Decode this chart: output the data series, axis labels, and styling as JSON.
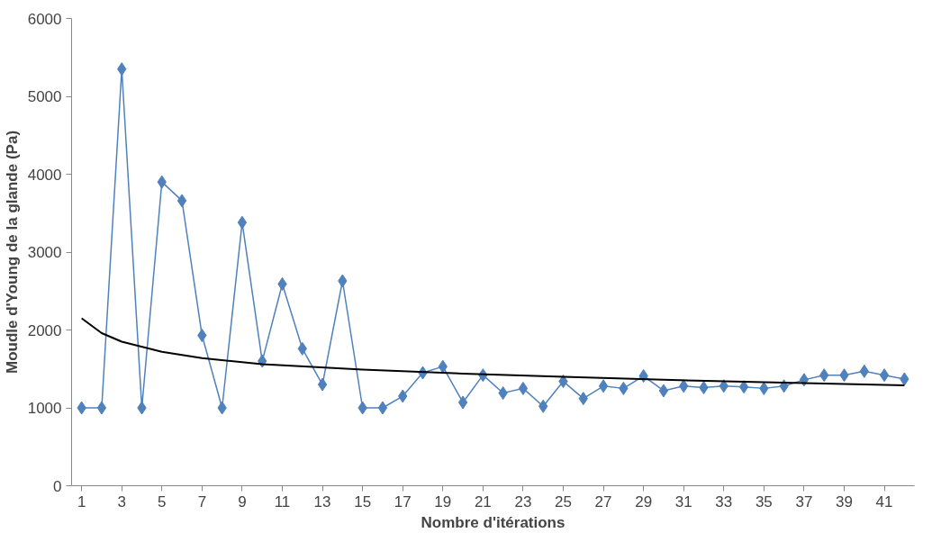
{
  "chart_data": {
    "type": "line",
    "xlabel": "Nombre d'itérations",
    "ylabel": "Moudle d'Young de la glande (Pa)",
    "x": [
      1,
      2,
      3,
      4,
      5,
      6,
      7,
      8,
      9,
      10,
      11,
      12,
      13,
      14,
      15,
      16,
      17,
      18,
      19,
      20,
      21,
      22,
      23,
      24,
      25,
      26,
      27,
      28,
      29,
      30,
      31,
      32,
      33,
      34,
      35,
      36,
      37,
      38,
      39,
      40,
      41,
      42
    ],
    "series": [
      {
        "color": "#4f81bd",
        "marker": "diamond",
        "values": [
          1000,
          1000,
          5350,
          1000,
          3900,
          3660,
          1930,
          1000,
          3380,
          1600,
          2590,
          1760,
          1300,
          2630,
          1000,
          1000,
          1150,
          1450,
          1530,
          1070,
          1420,
          1190,
          1250,
          1020,
          1340,
          1120,
          1280,
          1250,
          1410,
          1220,
          1280,
          1260,
          1280,
          1270,
          1250,
          1280,
          1360,
          1420,
          1420,
          1470,
          1420,
          1370
        ]
      },
      {
        "color": "#000000",
        "marker": "none",
        "x": [
          1,
          2,
          3,
          5,
          7,
          10,
          15,
          20,
          25,
          30,
          35,
          42
        ],
        "values": [
          2150,
          1960,
          1850,
          1720,
          1640,
          1560,
          1490,
          1440,
          1400,
          1360,
          1330,
          1290
        ]
      }
    ],
    "xlim": [
      0.5,
      42.5
    ],
    "xticks": [
      1,
      3,
      5,
      7,
      9,
      11,
      13,
      15,
      17,
      19,
      21,
      23,
      25,
      27,
      29,
      31,
      33,
      35,
      37,
      39,
      41
    ],
    "ylim": [
      0,
      6000
    ],
    "yticks": [
      0,
      1000,
      2000,
      3000,
      4000,
      5000,
      6000
    ],
    "grid": false
  }
}
